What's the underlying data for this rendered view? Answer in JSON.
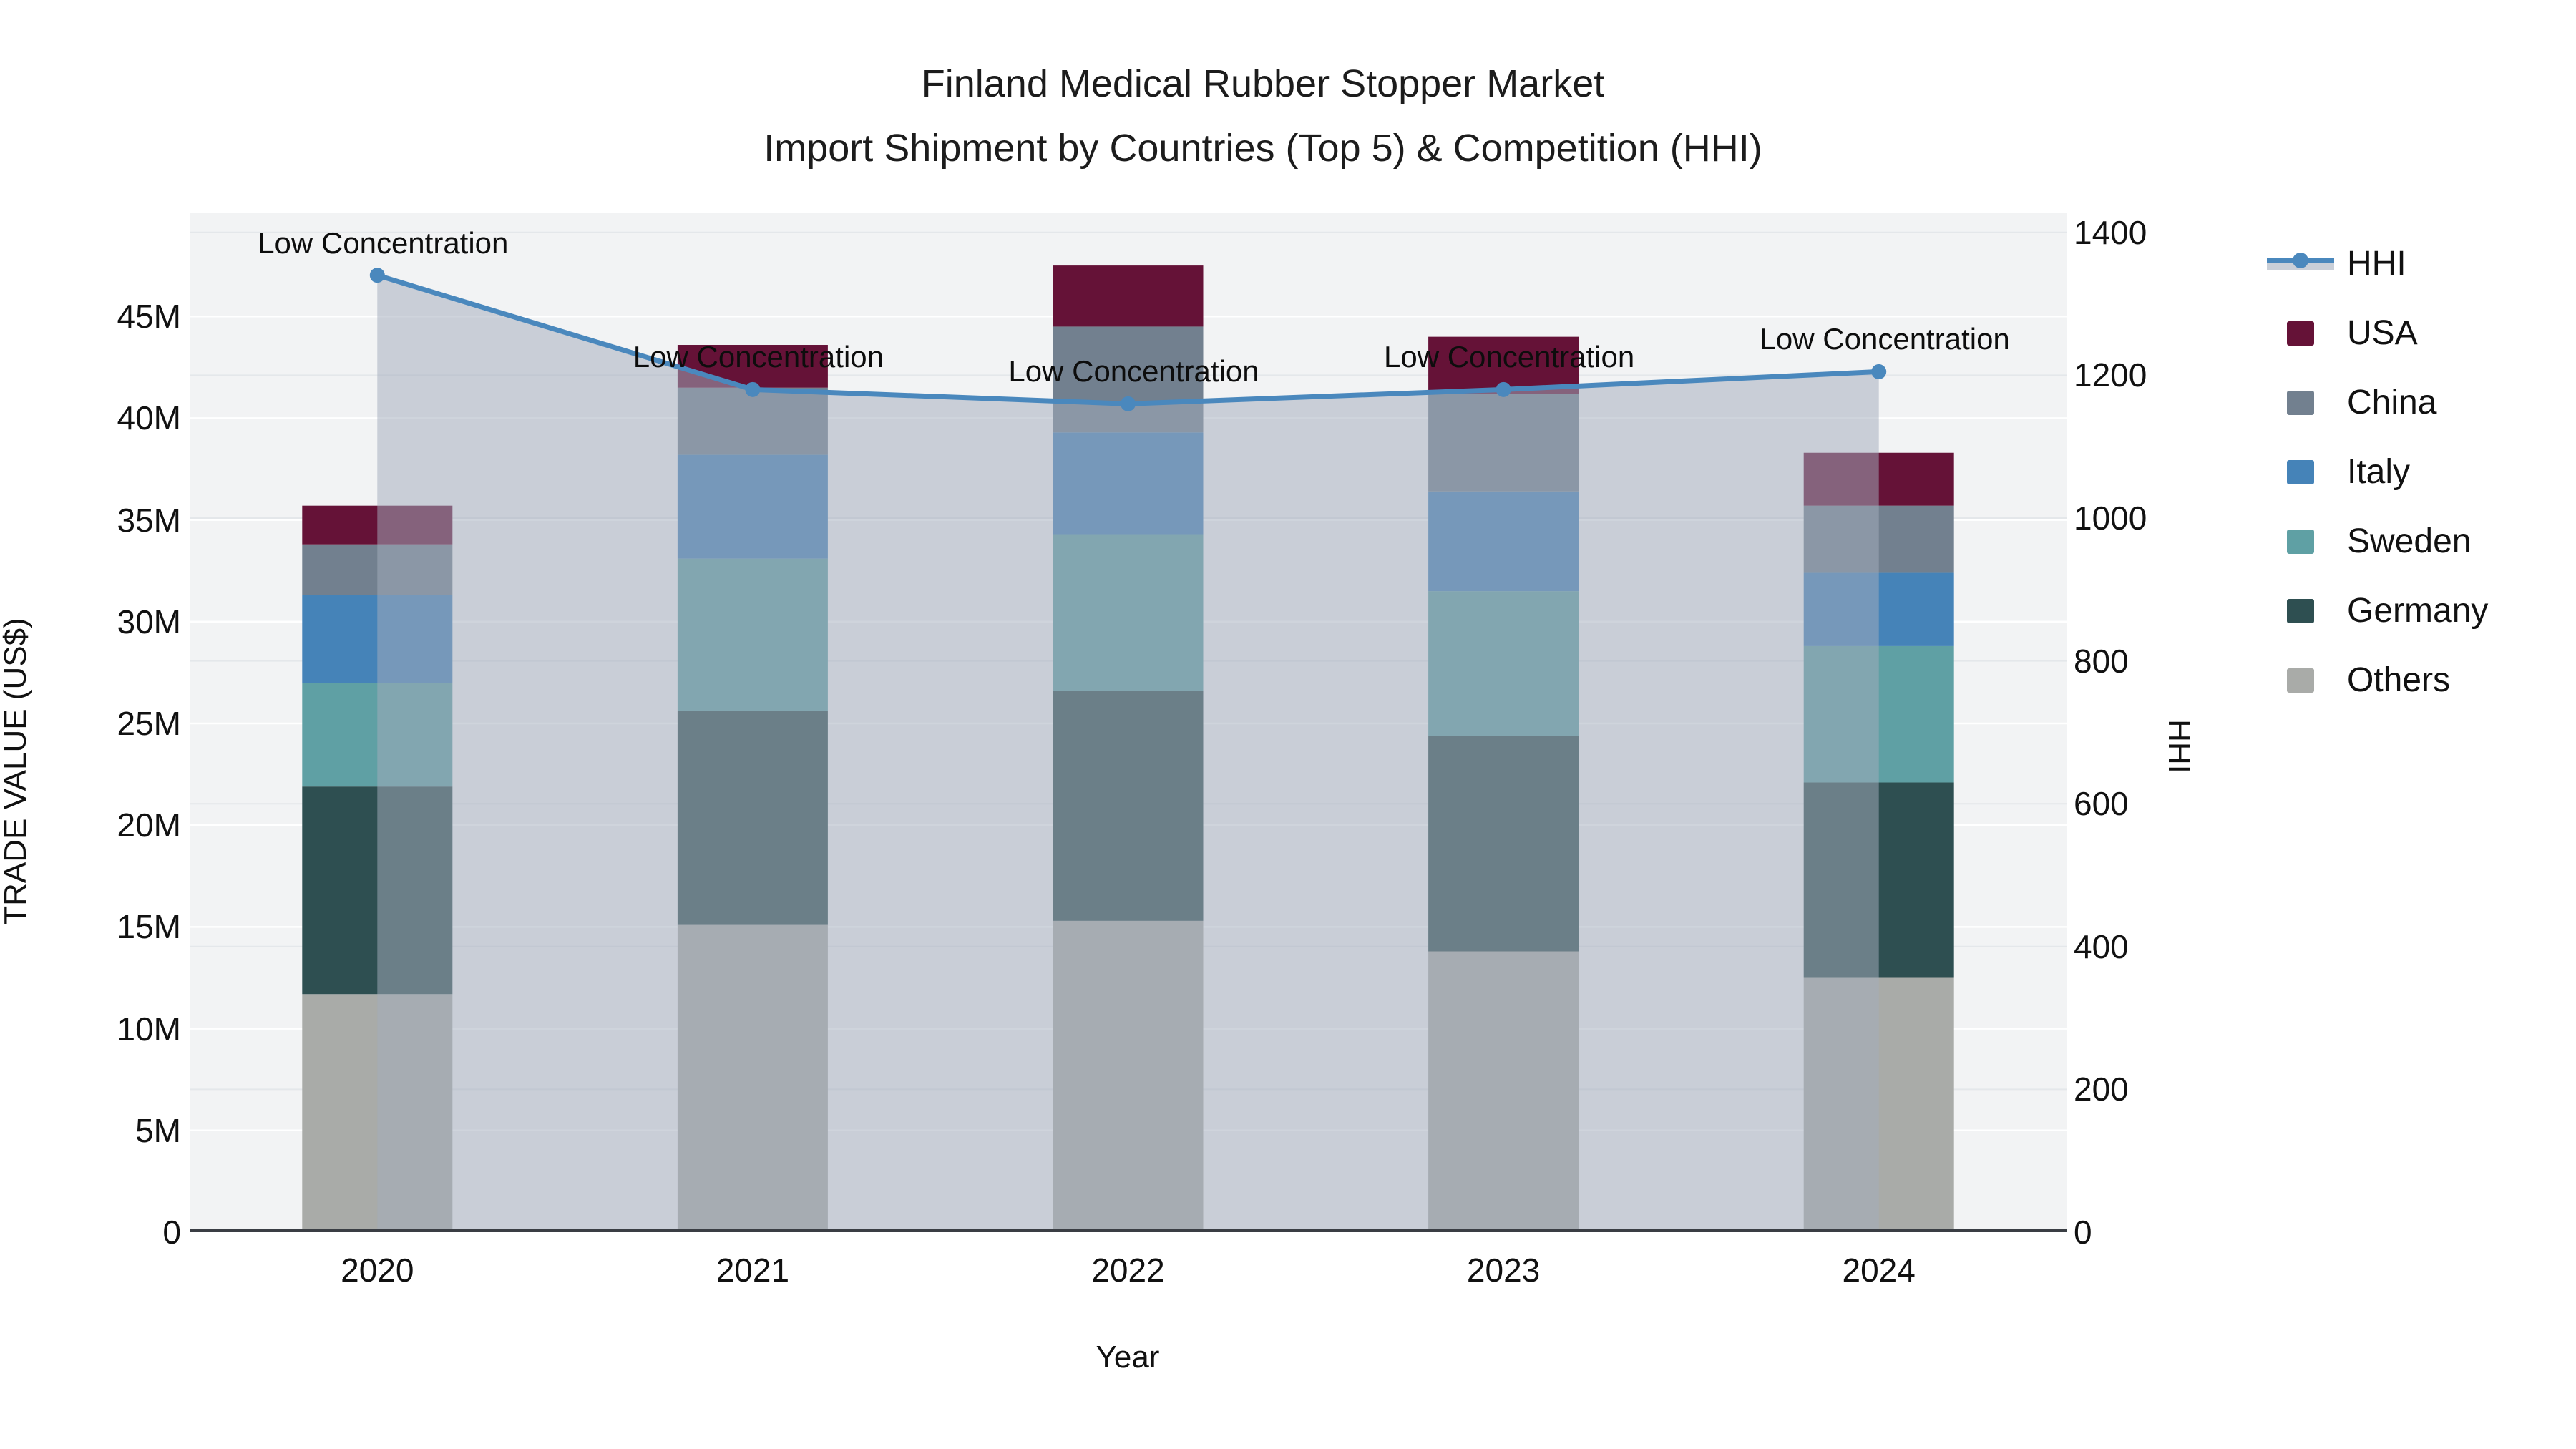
{
  "title": {
    "line1": "Finland Medical Rubber Stopper Market",
    "line2": "Import Shipment by Countries (Top 5) & Competition (HHI)"
  },
  "axes": {
    "left_title": "TRADE VALUE (US$)",
    "right_title": "HHI",
    "x_title": "Year"
  },
  "legend_items": [
    {
      "label": "HHI",
      "type": "line"
    },
    {
      "label": "USA",
      "type": "swatch",
      "color_key": "usa"
    },
    {
      "label": "China",
      "type": "swatch",
      "color_key": "china"
    },
    {
      "label": "Italy",
      "type": "swatch",
      "color_key": "italy"
    },
    {
      "label": "Sweden",
      "type": "swatch",
      "color_key": "sweden"
    },
    {
      "label": "Germany",
      "type": "swatch",
      "color_key": "germany"
    },
    {
      "label": "Others",
      "type": "swatch",
      "color_key": "others"
    }
  ],
  "colors": {
    "usa": "#651237",
    "china": "#72808F",
    "italy": "#4583B8",
    "sweden": "#5FA0A4",
    "germany": "#2E4F51",
    "others": "#A9ABA8",
    "hhi_line": "#4A88BD",
    "hhi_fill": "rgba(163,172,188,0.52)",
    "hhi_legend_band": "#C9CFD8",
    "plot_bg": "#F2F3F4",
    "grid_left": "rgba(255,255,255,0.95)",
    "grid_right": "#E4E7EA",
    "axis_line": "#3A3E44"
  },
  "chart_data": {
    "type": "bar",
    "subtype": "stacked-bars-with-line-overlay",
    "categories": [
      "2020",
      "2021",
      "2022",
      "2023",
      "2024"
    ],
    "value_unit": "million US$",
    "series": [
      {
        "name": "USA",
        "values": [
          1.9,
          2.1,
          3.0,
          2.8,
          2.6
        ]
      },
      {
        "name": "China",
        "values": [
          2.5,
          3.3,
          5.2,
          4.8,
          3.3
        ]
      },
      {
        "name": "Italy",
        "values": [
          4.3,
          5.1,
          5.0,
          4.9,
          3.6
        ]
      },
      {
        "name": "Sweden",
        "values": [
          5.1,
          7.5,
          7.7,
          7.1,
          6.7
        ]
      },
      {
        "name": "Germany",
        "values": [
          10.2,
          10.5,
          11.3,
          10.6,
          9.6
        ]
      },
      {
        "name": "Others",
        "values": [
          11.7,
          15.1,
          15.3,
          13.8,
          12.5
        ]
      }
    ],
    "stack_totals": [
      35.7,
      43.6,
      47.5,
      44.0,
      38.3
    ],
    "line_series": {
      "name": "HHI",
      "axis": "right",
      "values": [
        1340,
        1180,
        1160,
        1180,
        1205
      ],
      "area_fill": true
    },
    "annotations": [
      {
        "text": "Low Concentration",
        "category": "2020"
      },
      {
        "text": "Low Concentration",
        "category": "2021"
      },
      {
        "text": "Low Concentration",
        "category": "2022"
      },
      {
        "text": "Low Concentration",
        "category": "2023"
      },
      {
        "text": "Low Concentration",
        "category": "2024"
      }
    ],
    "y_left": {
      "label": "TRADE VALUE (US$)",
      "range_M": [
        0,
        50
      ],
      "tick_values": [
        0,
        5,
        10,
        15,
        20,
        25,
        30,
        35,
        40,
        45
      ],
      "tick_labels": [
        "0",
        "5M",
        "10M",
        "15M",
        "20M",
        "25M",
        "30M",
        "35M",
        "40M",
        "45M"
      ],
      "grid": true
    },
    "y_right": {
      "label": "HHI",
      "range": [
        0,
        1426
      ],
      "tick_values": [
        0,
        200,
        400,
        600,
        800,
        1000,
        1200,
        1400
      ],
      "tick_labels": [
        "0",
        "200",
        "400",
        "600",
        "800",
        "1000",
        "1200",
        "1400"
      ],
      "grid": true
    },
    "x": {
      "label": "Year",
      "grid": false
    },
    "legend_position": "right"
  }
}
